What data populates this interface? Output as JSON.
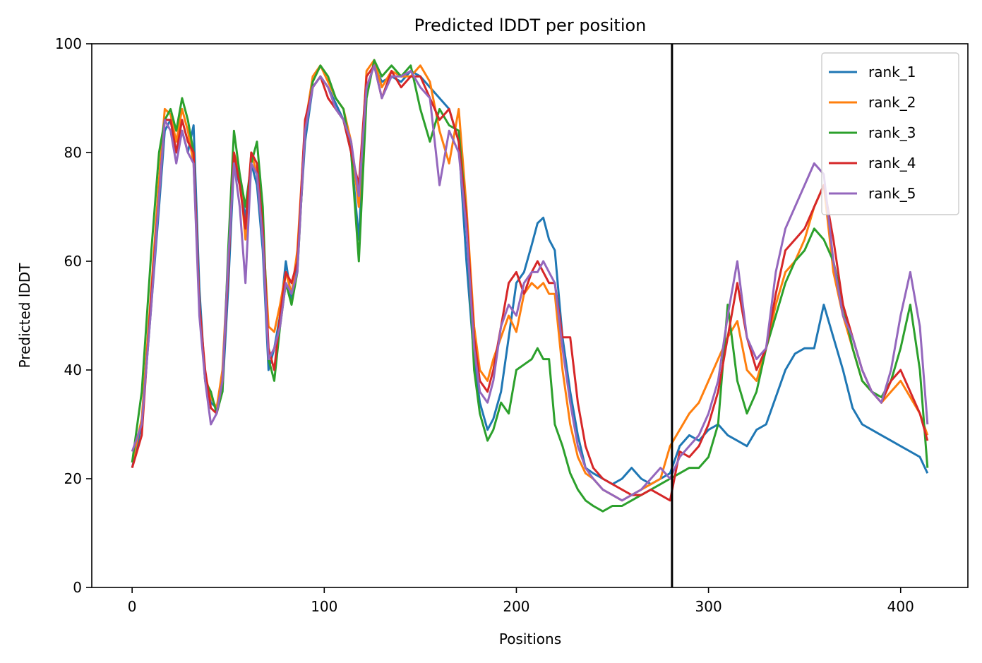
{
  "chart_data": {
    "type": "line",
    "title": "Predicted lDDT per position",
    "xlabel": "Positions",
    "ylabel": "Predicted lDDT",
    "xlim": [
      -21,
      435
    ],
    "ylim": [
      0,
      100
    ],
    "xticks": [
      0,
      100,
      200,
      300,
      400
    ],
    "yticks": [
      0,
      20,
      40,
      60,
      80,
      100
    ],
    "grid": false,
    "legend_position": "top-right",
    "vline_x": 281,
    "vline_color": "#000000",
    "series": [
      {
        "name": "rank_1",
        "color": "#1f77b4",
        "x": [
          0,
          5,
          10,
          14,
          17,
          20,
          23,
          26,
          29,
          32,
          35,
          38,
          41,
          44,
          47,
          50,
          53,
          56,
          59,
          62,
          65,
          68,
          71,
          74,
          77,
          80,
          83,
          86,
          90,
          94,
          98,
          102,
          106,
          110,
          114,
          118,
          122,
          126,
          130,
          135,
          140,
          145,
          150,
          155,
          160,
          165,
          170,
          174,
          178,
          181,
          185,
          188,
          192,
          196,
          200,
          204,
          208,
          211,
          214,
          217,
          220,
          224,
          228,
          232,
          236,
          240,
          245,
          250,
          255,
          260,
          265,
          270,
          275,
          280,
          285,
          290,
          295,
          300,
          305,
          310,
          315,
          320,
          325,
          330,
          335,
          340,
          345,
          350,
          355,
          360,
          365,
          370,
          375,
          380,
          385,
          390,
          395,
          400,
          405,
          410,
          414
        ],
        "y": [
          22,
          30,
          52,
          70,
          84,
          86,
          80,
          84,
          80,
          85,
          55,
          38,
          34,
          33,
          36,
          55,
          78,
          74,
          68,
          78,
          74,
          62,
          40,
          44,
          50,
          60,
          53,
          60,
          82,
          92,
          94,
          92,
          89,
          86,
          80,
          64,
          92,
          96,
          93,
          94,
          93,
          95,
          94,
          92,
          90,
          88,
          82,
          60,
          42,
          34,
          29,
          31,
          36,
          46,
          56,
          58,
          63,
          67,
          68,
          64,
          62,
          46,
          36,
          28,
          22,
          21,
          20,
          19,
          20,
          22,
          20,
          19,
          20,
          21,
          26,
          28,
          27,
          29,
          30,
          28,
          27,
          26,
          29,
          30,
          35,
          40,
          43,
          44,
          44,
          52,
          46,
          40,
          33,
          30,
          29,
          28,
          27,
          26,
          25,
          24,
          21
        ]
      },
      {
        "name": "rank_2",
        "color": "#ff7f0e",
        "x": [
          0,
          5,
          10,
          14,
          17,
          20,
          23,
          26,
          29,
          32,
          35,
          38,
          41,
          44,
          47,
          50,
          53,
          56,
          59,
          62,
          65,
          68,
          71,
          74,
          77,
          80,
          83,
          86,
          90,
          94,
          98,
          102,
          106,
          110,
          114,
          118,
          122,
          126,
          130,
          135,
          140,
          145,
          150,
          155,
          160,
          165,
          170,
          174,
          178,
          181,
          185,
          188,
          192,
          196,
          200,
          204,
          208,
          211,
          214,
          217,
          220,
          224,
          228,
          232,
          236,
          240,
          245,
          250,
          255,
          260,
          265,
          270,
          275,
          280,
          285,
          290,
          295,
          300,
          305,
          310,
          315,
          320,
          325,
          330,
          335,
          340,
          345,
          350,
          355,
          360,
          365,
          370,
          375,
          380,
          385,
          390,
          395,
          400,
          405,
          410,
          414
        ],
        "y": [
          23,
          31,
          55,
          75,
          88,
          87,
          82,
          88,
          84,
          78,
          52,
          39,
          35,
          33,
          40,
          60,
          80,
          76,
          64,
          80,
          76,
          66,
          48,
          47,
          52,
          58,
          54,
          62,
          85,
          94,
          96,
          93,
          90,
          88,
          82,
          70,
          95,
          97,
          92,
          95,
          94,
          94,
          96,
          93,
          84,
          78,
          88,
          70,
          48,
          40,
          38,
          42,
          46,
          50,
          47,
          54,
          56,
          55,
          56,
          54,
          54,
          40,
          30,
          24,
          21,
          20,
          18,
          17,
          16,
          17,
          18,
          19,
          20,
          26,
          29,
          32,
          34,
          38,
          42,
          46,
          49,
          40,
          38,
          44,
          52,
          58,
          60,
          64,
          70,
          74,
          58,
          50,
          44,
          38,
          36,
          34,
          36,
          38,
          35,
          32,
          28
        ]
      },
      {
        "name": "rank_3",
        "color": "#2ca02c",
        "x": [
          0,
          5,
          10,
          14,
          17,
          20,
          23,
          26,
          29,
          32,
          35,
          38,
          41,
          44,
          47,
          50,
          53,
          56,
          59,
          62,
          65,
          68,
          71,
          74,
          77,
          80,
          83,
          86,
          90,
          94,
          98,
          102,
          106,
          110,
          114,
          118,
          122,
          126,
          130,
          135,
          140,
          145,
          150,
          155,
          160,
          165,
          170,
          174,
          178,
          181,
          185,
          188,
          192,
          196,
          200,
          204,
          208,
          211,
          214,
          217,
          220,
          224,
          228,
          232,
          236,
          240,
          245,
          250,
          255,
          260,
          265,
          270,
          275,
          280,
          285,
          290,
          295,
          300,
          305,
          310,
          315,
          320,
          325,
          330,
          335,
          340,
          345,
          350,
          355,
          360,
          365,
          370,
          375,
          380,
          385,
          390,
          395,
          400,
          405,
          410,
          414
        ],
        "y": [
          23,
          36,
          62,
          80,
          86,
          88,
          84,
          90,
          86,
          80,
          52,
          38,
          36,
          32,
          36,
          62,
          84,
          76,
          70,
          78,
          82,
          70,
          42,
          38,
          48,
          56,
          52,
          58,
          84,
          93,
          96,
          94,
          90,
          88,
          80,
          60,
          90,
          97,
          94,
          96,
          94,
          96,
          88,
          82,
          88,
          85,
          84,
          68,
          40,
          32,
          27,
          29,
          34,
          32,
          40,
          41,
          42,
          44,
          42,
          42,
          30,
          26,
          21,
          18,
          16,
          15,
          14,
          15,
          15,
          16,
          17,
          18,
          19,
          20,
          21,
          22,
          22,
          24,
          30,
          52,
          38,
          32,
          36,
          44,
          50,
          56,
          60,
          62,
          66,
          64,
          60,
          52,
          44,
          38,
          36,
          35,
          38,
          44,
          52,
          40,
          22
        ]
      },
      {
        "name": "rank_4",
        "color": "#d62728",
        "x": [
          0,
          5,
          10,
          14,
          17,
          20,
          23,
          26,
          29,
          32,
          35,
          38,
          41,
          44,
          47,
          50,
          53,
          56,
          59,
          62,
          65,
          68,
          71,
          74,
          77,
          80,
          83,
          86,
          90,
          94,
          98,
          102,
          106,
          110,
          114,
          118,
          122,
          126,
          130,
          135,
          140,
          145,
          150,
          155,
          160,
          165,
          170,
          174,
          178,
          181,
          185,
          188,
          192,
          196,
          200,
          204,
          208,
          211,
          214,
          217,
          220,
          224,
          228,
          232,
          236,
          240,
          245,
          250,
          255,
          260,
          265,
          270,
          275,
          280,
          285,
          290,
          295,
          300,
          305,
          310,
          315,
          320,
          325,
          330,
          335,
          340,
          345,
          350,
          355,
          360,
          365,
          370,
          375,
          380,
          385,
          390,
          395,
          400,
          405,
          410,
          414
        ],
        "y": [
          22,
          28,
          54,
          72,
          86,
          86,
          80,
          86,
          82,
          80,
          52,
          40,
          33,
          32,
          38,
          58,
          80,
          74,
          66,
          80,
          78,
          66,
          44,
          40,
          50,
          58,
          56,
          60,
          86,
          92,
          94,
          90,
          88,
          86,
          80,
          74,
          94,
          96,
          90,
          95,
          92,
          94,
          94,
          90,
          86,
          88,
          82,
          68,
          46,
          38,
          36,
          40,
          48,
          56,
          58,
          54,
          58,
          60,
          58,
          56,
          56,
          46,
          46,
          34,
          26,
          22,
          20,
          19,
          18,
          17,
          17,
          18,
          17,
          16,
          25,
          24,
          26,
          30,
          36,
          46,
          56,
          46,
          40,
          44,
          54,
          62,
          64,
          66,
          70,
          74,
          64,
          52,
          46,
          40,
          36,
          34,
          38,
          40,
          36,
          32,
          27
        ]
      },
      {
        "name": "rank_5",
        "color": "#9467bd",
        "x": [
          0,
          5,
          10,
          14,
          17,
          20,
          23,
          26,
          29,
          32,
          35,
          38,
          41,
          44,
          47,
          50,
          53,
          56,
          59,
          62,
          65,
          68,
          71,
          74,
          77,
          80,
          83,
          86,
          90,
          94,
          98,
          102,
          106,
          110,
          114,
          118,
          122,
          126,
          130,
          135,
          140,
          145,
          150,
          155,
          160,
          165,
          170,
          174,
          178,
          181,
          185,
          188,
          192,
          196,
          200,
          204,
          208,
          211,
          214,
          217,
          220,
          224,
          228,
          232,
          236,
          240,
          245,
          250,
          255,
          260,
          265,
          270,
          275,
          280,
          285,
          290,
          295,
          300,
          305,
          310,
          315,
          320,
          325,
          330,
          335,
          340,
          345,
          350,
          355,
          360,
          365,
          370,
          375,
          380,
          385,
          390,
          395,
          400,
          405,
          410,
          414
        ],
        "y": [
          25,
          30,
          52,
          72,
          86,
          84,
          78,
          84,
          80,
          78,
          50,
          38,
          30,
          32,
          38,
          60,
          78,
          70,
          56,
          78,
          76,
          64,
          42,
          44,
          48,
          56,
          54,
          58,
          84,
          92,
          94,
          92,
          88,
          86,
          82,
          72,
          92,
          96,
          90,
          94,
          94,
          95,
          92,
          90,
          74,
          84,
          80,
          66,
          44,
          36,
          34,
          38,
          48,
          52,
          50,
          56,
          58,
          58,
          60,
          58,
          56,
          44,
          34,
          26,
          22,
          20,
          18,
          17,
          16,
          17,
          18,
          20,
          22,
          20,
          24,
          26,
          28,
          32,
          38,
          50,
          60,
          46,
          42,
          44,
          58,
          66,
          70,
          74,
          78,
          76,
          60,
          50,
          46,
          40,
          36,
          34,
          40,
          50,
          58,
          48,
          30
        ]
      }
    ]
  }
}
